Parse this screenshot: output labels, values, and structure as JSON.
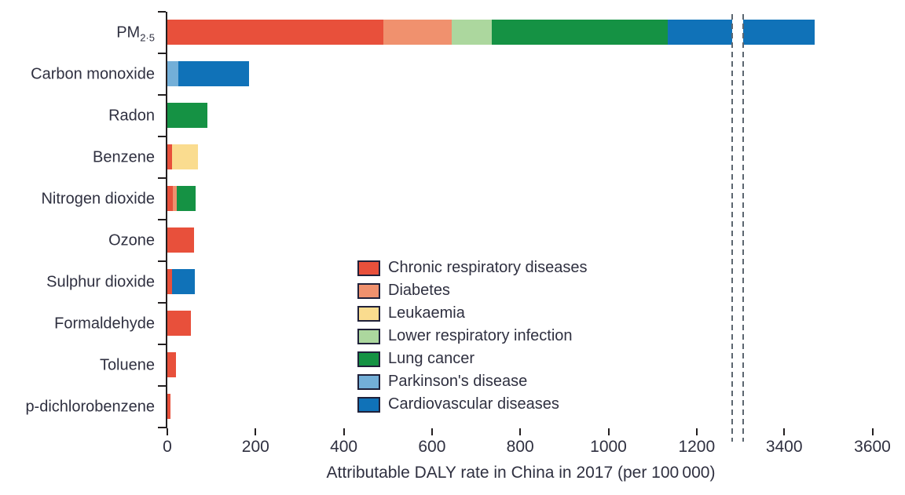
{
  "colors": {
    "chronic_respiratory": "#E8503B",
    "diabetes": "#F0916E",
    "leukaemia": "#FADC8F",
    "lower_respiratory_infection": "#ACD79E",
    "lung_cancer": "#159244",
    "parkinsons": "#73AFD8",
    "cardiovascular": "#1072B8",
    "axis": "#231F20",
    "text": "#2F3040",
    "break_dash": "#5C6670"
  },
  "chart_data": {
    "type": "bar",
    "orientation": "horizontal",
    "stacked": true,
    "title": "",
    "xlabel": "Attributable DALY rate in China in 2017 (per 100 000)",
    "ylabel": "",
    "unit": "per 100 000",
    "grid": false,
    "legend_position": "inside-center",
    "categories": [
      "PM2.5",
      "Carbon monoxide",
      "Radon",
      "Benzene",
      "Nitrogen dioxide",
      "Ozone",
      "Sulphur dioxide",
      "Formaldehyde",
      "Toluene",
      "p-dichlorobenzene"
    ],
    "category_labels": [
      {
        "text": "PM",
        "sub": "2·5"
      },
      {
        "text": "Carbon monoxide"
      },
      {
        "text": "Radon"
      },
      {
        "text": "Benzene"
      },
      {
        "text": "Nitrogen dioxide"
      },
      {
        "text": "Ozone"
      },
      {
        "text": "Sulphur dioxide"
      },
      {
        "text": "Formaldehyde"
      },
      {
        "text": "Toluene"
      },
      {
        "text": "p-dichlorobenzene"
      }
    ],
    "series": [
      {
        "name": "Chronic respiratory diseases",
        "color": "#E8503B",
        "values": [
          490,
          0,
          0,
          11,
          12,
          60,
          11,
          53,
          20,
          8
        ]
      },
      {
        "name": "Diabetes",
        "color": "#F0916E",
        "values": [
          155,
          0,
          0,
          0,
          9,
          0,
          0,
          0,
          0,
          0
        ]
      },
      {
        "name": "Leukaemia",
        "color": "#FADC8F",
        "values": [
          0,
          0,
          0,
          59,
          0,
          0,
          0,
          0,
          0,
          0
        ]
      },
      {
        "name": "Lower respiratory infection",
        "color": "#ACD79E",
        "values": [
          90,
          0,
          0,
          0,
          0,
          0,
          0,
          0,
          0,
          0
        ]
      },
      {
        "name": "Lung cancer",
        "color": "#159244",
        "values": [
          400,
          0,
          90,
          0,
          43,
          0,
          0,
          0,
          0,
          0
        ]
      },
      {
        "name": "Parkinson's disease",
        "color": "#73AFD8",
        "values": [
          0,
          25,
          0,
          0,
          0,
          0,
          0,
          0,
          0,
          0
        ]
      },
      {
        "name": "Cardiovascular diseases",
        "color": "#1072B8",
        "values": [
          2335,
          160,
          0,
          0,
          0,
          0,
          52,
          0,
          0,
          0
        ]
      }
    ],
    "totals": [
      3470,
      185,
      90,
      70,
      64,
      60,
      63,
      53,
      20,
      8
    ],
    "x_ticks": [
      0,
      200,
      400,
      600,
      800,
      1000,
      1200,
      3400,
      3600
    ],
    "axis_break": {
      "between_ticks": [
        1200,
        3400
      ],
      "left_segment_max": 1280,
      "right_segment_min": 3307
    },
    "xlim": [
      0,
      3600
    ]
  }
}
